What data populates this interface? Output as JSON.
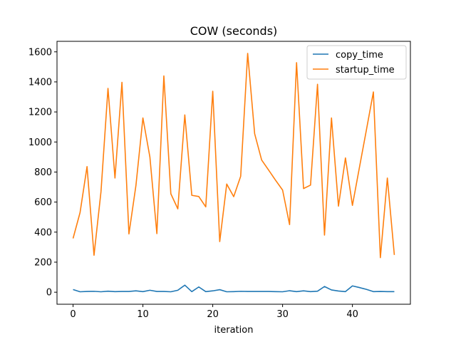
{
  "chart_data": {
    "type": "line",
    "title": "COW (seconds)",
    "xlabel": "iteration",
    "ylabel": "",
    "xlim": [
      -2.3,
      48.3
    ],
    "ylim": [
      -80,
      1670
    ],
    "xticks": [
      0,
      10,
      20,
      30,
      40
    ],
    "yticks": [
      0,
      200,
      400,
      600,
      800,
      1000,
      1200,
      1400,
      1600
    ],
    "grid": false,
    "legend_position": "top-right",
    "series": [
      {
        "name": "copy_time",
        "color": "#1f77b4",
        "x": [
          0,
          1,
          2,
          3,
          4,
          5,
          6,
          7,
          8,
          9,
          10,
          11,
          12,
          13,
          14,
          15,
          16,
          17,
          18,
          19,
          20,
          21,
          22,
          23,
          24,
          25,
          26,
          27,
          28,
          29,
          30,
          31,
          32,
          33,
          34,
          35,
          36,
          37,
          38,
          39,
          40,
          41,
          42,
          43,
          44,
          45,
          46
        ],
        "y": [
          18,
          3,
          5,
          6,
          3,
          7,
          4,
          5,
          5,
          9,
          4,
          13,
          5,
          5,
          3,
          13,
          47,
          4,
          35,
          4,
          9,
          17,
          3,
          4,
          6,
          5,
          5,
          5,
          5,
          4,
          3,
          10,
          4,
          9,
          4,
          7,
          38,
          15,
          8,
          4,
          42,
          31,
          19,
          4,
          5,
          4,
          4
        ]
      },
      {
        "name": "startup_time",
        "color": "#ff7f0e",
        "x": [
          0,
          1,
          2,
          3,
          4,
          5,
          6,
          7,
          8,
          9,
          10,
          11,
          12,
          13,
          14,
          15,
          16,
          17,
          18,
          19,
          20,
          21,
          22,
          23,
          24,
          25,
          26,
          27,
          28,
          29,
          30,
          31,
          32,
          33,
          34,
          35,
          36,
          37,
          38,
          39,
          40,
          41,
          42,
          43,
          44,
          45,
          46
        ],
        "y": [
          358,
          530,
          836,
          246,
          670,
          1357,
          760,
          1397,
          388,
          710,
          1160,
          900,
          390,
          1440,
          655,
          555,
          1180,
          645,
          637,
          568,
          1338,
          337,
          720,
          636,
          772,
          1590,
          1055,
          880,
          813,
          745,
          680,
          450,
          1528,
          690,
          713,
          1384,
          380,
          1160,
          573,
          894,
          578,
          830,
          1080,
          1333,
          230,
          760,
          248
        ]
      }
    ]
  }
}
